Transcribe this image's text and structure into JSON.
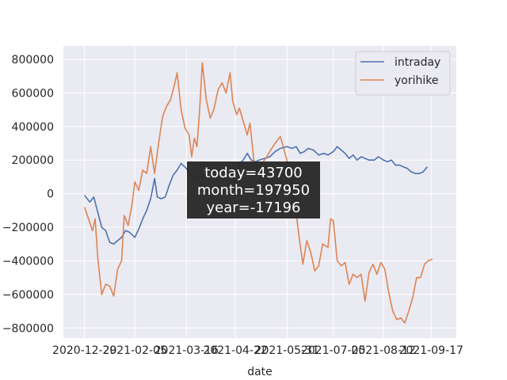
{
  "chart_data": {
    "type": "line",
    "xlabel": "date",
    "ylabel": "",
    "title": "",
    "grid": true,
    "legend_position": "top-right",
    "ylim": [
      -860000,
      880000
    ],
    "xlim": [
      "2020-12-13",
      "2021-10-06"
    ],
    "x_ticks": [
      "2020-12-29",
      "2021-02-05",
      "2021-03-16",
      "2021-04-22",
      "2021-05-31",
      "2021-07-05",
      "2021-08-12",
      "2021-09-17"
    ],
    "y_ticks": [
      -800000,
      -600000,
      -400000,
      -200000,
      0,
      200000,
      400000,
      600000,
      800000
    ],
    "y_tick_labels": [
      "−800000",
      "−600000",
      "−400000",
      "−200000",
      "0",
      "200000",
      "400000",
      "600000",
      "800000"
    ],
    "series": [
      {
        "name": "intraday",
        "color": "#4c72b0",
        "points": [
          [
            "2020-12-29",
            -10000
          ],
          [
            "2021-01-02",
            -50000
          ],
          [
            "2021-01-05",
            -20000
          ],
          [
            "2021-01-08",
            -110000
          ],
          [
            "2021-01-11",
            -200000
          ],
          [
            "2021-01-14",
            -220000
          ],
          [
            "2021-01-17",
            -290000
          ],
          [
            "2021-01-20",
            -300000
          ],
          [
            "2021-01-23",
            -280000
          ],
          [
            "2021-01-26",
            -260000
          ],
          [
            "2021-01-29",
            -220000
          ],
          [
            "2021-02-01",
            -230000
          ],
          [
            "2021-02-05",
            -260000
          ],
          [
            "2021-02-08",
            -210000
          ],
          [
            "2021-02-11",
            -150000
          ],
          [
            "2021-02-14",
            -100000
          ],
          [
            "2021-02-17",
            -30000
          ],
          [
            "2021-02-20",
            90000
          ],
          [
            "2021-02-22",
            -20000
          ],
          [
            "2021-02-25",
            -30000
          ],
          [
            "2021-02-28",
            -20000
          ],
          [
            "2021-03-03",
            50000
          ],
          [
            "2021-03-06",
            110000
          ],
          [
            "2021-03-09",
            140000
          ],
          [
            "2021-03-12",
            180000
          ],
          [
            "2021-03-16",
            150000
          ],
          [
            "2021-03-19",
            110000
          ],
          [
            "2021-03-22",
            100000
          ],
          [
            "2021-03-25",
            90000
          ],
          [
            "2021-03-28",
            100000
          ],
          [
            "2021-04-01",
            110000
          ],
          [
            "2021-04-05",
            100000
          ],
          [
            "2021-04-09",
            80000
          ],
          [
            "2021-04-13",
            90000
          ],
          [
            "2021-04-17",
            100000
          ],
          [
            "2021-04-22",
            110000
          ],
          [
            "2021-04-25",
            180000
          ],
          [
            "2021-04-28",
            200000
          ],
          [
            "2021-05-01",
            240000
          ],
          [
            "2021-05-04",
            200000
          ],
          [
            "2021-05-07",
            190000
          ],
          [
            "2021-05-10",
            200000
          ],
          [
            "2021-05-14",
            210000
          ],
          [
            "2021-05-18",
            220000
          ],
          [
            "2021-05-22",
            250000
          ],
          [
            "2021-05-26",
            270000
          ],
          [
            "2021-05-31",
            280000
          ],
          [
            "2021-06-04",
            270000
          ],
          [
            "2021-06-07",
            280000
          ],
          [
            "2021-06-10",
            240000
          ],
          [
            "2021-06-13",
            250000
          ],
          [
            "2021-06-16",
            270000
          ],
          [
            "2021-06-20",
            260000
          ],
          [
            "2021-06-24",
            230000
          ],
          [
            "2021-06-28",
            240000
          ],
          [
            "2021-07-01",
            230000
          ],
          [
            "2021-07-05",
            250000
          ],
          [
            "2021-07-08",
            280000
          ],
          [
            "2021-07-11",
            260000
          ],
          [
            "2021-07-14",
            240000
          ],
          [
            "2021-07-17",
            210000
          ],
          [
            "2021-07-20",
            230000
          ],
          [
            "2021-07-23",
            200000
          ],
          [
            "2021-07-26",
            220000
          ],
          [
            "2021-07-29",
            210000
          ],
          [
            "2021-08-01",
            200000
          ],
          [
            "2021-08-05",
            200000
          ],
          [
            "2021-08-08",
            220000
          ],
          [
            "2021-08-12",
            200000
          ],
          [
            "2021-08-15",
            190000
          ],
          [
            "2021-08-18",
            200000
          ],
          [
            "2021-08-21",
            170000
          ],
          [
            "2021-08-24",
            170000
          ],
          [
            "2021-08-27",
            160000
          ],
          [
            "2021-08-30",
            150000
          ],
          [
            "2021-09-02",
            130000
          ],
          [
            "2021-09-05",
            120000
          ],
          [
            "2021-09-08",
            120000
          ],
          [
            "2021-09-11",
            130000
          ],
          [
            "2021-09-14",
            160000
          ]
        ]
      },
      {
        "name": "yorihike",
        "color": "#dd8452",
        "points": [
          [
            "2020-12-29",
            -80000
          ],
          [
            "2021-01-01",
            -150000
          ],
          [
            "2021-01-04",
            -220000
          ],
          [
            "2021-01-06",
            -150000
          ],
          [
            "2021-01-08",
            -380000
          ],
          [
            "2021-01-11",
            -600000
          ],
          [
            "2021-01-14",
            -540000
          ],
          [
            "2021-01-17",
            -550000
          ],
          [
            "2021-01-20",
            -610000
          ],
          [
            "2021-01-23",
            -450000
          ],
          [
            "2021-01-26",
            -400000
          ],
          [
            "2021-01-28",
            -130000
          ],
          [
            "2021-01-31",
            -190000
          ],
          [
            "2021-02-03",
            -60000
          ],
          [
            "2021-02-05",
            70000
          ],
          [
            "2021-02-08",
            20000
          ],
          [
            "2021-02-11",
            140000
          ],
          [
            "2021-02-14",
            120000
          ],
          [
            "2021-02-17",
            280000
          ],
          [
            "2021-02-20",
            120000
          ],
          [
            "2021-02-23",
            300000
          ],
          [
            "2021-02-26",
            460000
          ],
          [
            "2021-03-01",
            520000
          ],
          [
            "2021-03-04",
            560000
          ],
          [
            "2021-03-07",
            650000
          ],
          [
            "2021-03-09",
            720000
          ],
          [
            "2021-03-12",
            500000
          ],
          [
            "2021-03-15",
            390000
          ],
          [
            "2021-03-18",
            350000
          ],
          [
            "2021-03-20",
            220000
          ],
          [
            "2021-03-22",
            330000
          ],
          [
            "2021-03-24",
            280000
          ],
          [
            "2021-03-26",
            500000
          ],
          [
            "2021-03-28",
            780000
          ],
          [
            "2021-03-31",
            560000
          ],
          [
            "2021-04-03",
            450000
          ],
          [
            "2021-04-06",
            510000
          ],
          [
            "2021-04-09",
            620000
          ],
          [
            "2021-04-12",
            660000
          ],
          [
            "2021-04-15",
            600000
          ],
          [
            "2021-04-18",
            720000
          ],
          [
            "2021-04-20",
            550000
          ],
          [
            "2021-04-23",
            470000
          ],
          [
            "2021-04-25",
            510000
          ],
          [
            "2021-04-28",
            430000
          ],
          [
            "2021-05-01",
            350000
          ],
          [
            "2021-05-03",
            420000
          ],
          [
            "2021-05-06",
            200000
          ],
          [
            "2021-05-09",
            160000
          ],
          [
            "2021-05-12",
            180000
          ],
          [
            "2021-05-15",
            210000
          ],
          [
            "2021-05-18",
            250000
          ],
          [
            "2021-05-22",
            300000
          ],
          [
            "2021-05-26",
            340000
          ],
          [
            "2021-05-31",
            200000
          ],
          [
            "2021-06-03",
            80000
          ],
          [
            "2021-06-06",
            -50000
          ],
          [
            "2021-06-09",
            -250000
          ],
          [
            "2021-06-12",
            -420000
          ],
          [
            "2021-06-15",
            -280000
          ],
          [
            "2021-06-18",
            -350000
          ],
          [
            "2021-06-21",
            -460000
          ],
          [
            "2021-06-24",
            -430000
          ],
          [
            "2021-06-27",
            -300000
          ],
          [
            "2021-07-01",
            -320000
          ],
          [
            "2021-07-03",
            -150000
          ],
          [
            "2021-07-05",
            -160000
          ],
          [
            "2021-07-08",
            -400000
          ],
          [
            "2021-07-11",
            -430000
          ],
          [
            "2021-07-14",
            -410000
          ],
          [
            "2021-07-17",
            -540000
          ],
          [
            "2021-07-20",
            -480000
          ],
          [
            "2021-07-23",
            -500000
          ],
          [
            "2021-07-26",
            -480000
          ],
          [
            "2021-07-29",
            -640000
          ],
          [
            "2021-08-01",
            -470000
          ],
          [
            "2021-08-04",
            -420000
          ],
          [
            "2021-08-07",
            -480000
          ],
          [
            "2021-08-10",
            -410000
          ],
          [
            "2021-08-13",
            -450000
          ],
          [
            "2021-08-16",
            -590000
          ],
          [
            "2021-08-19",
            -700000
          ],
          [
            "2021-08-22",
            -750000
          ],
          [
            "2021-08-25",
            -740000
          ],
          [
            "2021-08-28",
            -770000
          ],
          [
            "2021-08-31",
            -700000
          ],
          [
            "2021-09-03",
            -620000
          ],
          [
            "2021-09-06",
            -500000
          ],
          [
            "2021-09-09",
            -500000
          ],
          [
            "2021-09-12",
            -420000
          ],
          [
            "2021-09-15",
            -400000
          ],
          [
            "2021-09-18",
            -390000
          ]
        ]
      }
    ],
    "annotation": {
      "lines": [
        "today=43700",
        "month=197950",
        "year=-17196"
      ]
    }
  }
}
